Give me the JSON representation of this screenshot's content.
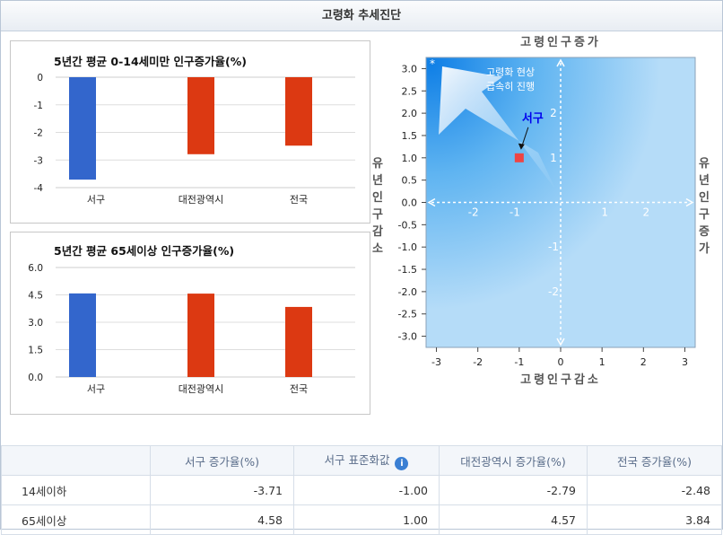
{
  "header": {
    "title": "고령화 추세진단"
  },
  "chart_data": [
    {
      "type": "bar",
      "title": "5년간 평균 0-14세미만 인구증가율(%)",
      "categories": [
        "서구",
        "대전광역시",
        "전국"
      ],
      "values": [
        -3.71,
        -2.79,
        -2.48
      ],
      "ylim": [
        -4,
        0
      ],
      "yticks": [
        "0",
        "-1",
        "-2",
        "-3",
        "-4"
      ],
      "colors": [
        "#3366cc",
        "#dc3912",
        "#dc3912"
      ]
    },
    {
      "type": "bar",
      "title": "5년간 평균 65세이상 인구증가율(%)",
      "categories": [
        "서구",
        "대전광역시",
        "전국"
      ],
      "values": [
        4.58,
        4.57,
        3.84
      ],
      "ylim": [
        0,
        6
      ],
      "yticks": [
        "6.0",
        "4.5",
        "3.0",
        "1.5",
        "0.0"
      ],
      "colors": [
        "#3366cc",
        "#dc3912",
        "#dc3912"
      ]
    },
    {
      "type": "scatter",
      "title_top": "고령인구증가",
      "title_bottom": "고령인구감소",
      "label_left": "유년인구감소",
      "label_right": "유년인구증가",
      "xlim": [
        -3.25,
        3.25
      ],
      "ylim": [
        -3.25,
        3.25
      ],
      "x_ticks": [
        "-3",
        "-2",
        "-1",
        "0",
        "1",
        "2",
        "3"
      ],
      "y_ticks": [
        "3.0",
        "2.5",
        "2.0",
        "1.5",
        "1.0",
        "0.5",
        "0.0",
        "-0.5",
        "-1.0",
        "-1.5",
        "-2.0",
        "-2.5",
        "-3.0"
      ],
      "inner_labels": [
        "-2",
        "-1",
        "1",
        "2",
        "2",
        "1",
        "-1",
        "-2"
      ],
      "point": {
        "name": "서구",
        "x": -1.0,
        "y": 1.0,
        "color": "#ee4444"
      },
      "annotation": [
        "고령화 현상",
        "급속히 진행"
      ]
    }
  ],
  "table": {
    "headers": [
      "",
      "서구 증가율(%)",
      "서구 표준화값",
      "대전광역시 증가율(%)",
      "전국 증가율(%)"
    ],
    "rows": [
      {
        "label": "14세이하",
        "cells": [
          "-3.71",
          "-1.00",
          "-2.79",
          "-2.48"
        ]
      },
      {
        "label": "65세이상",
        "cells": [
          "4.58",
          "1.00",
          "4.57",
          "3.84"
        ]
      }
    ]
  }
}
